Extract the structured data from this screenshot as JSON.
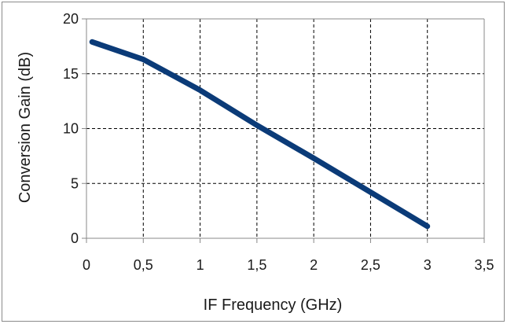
{
  "chart_data": {
    "type": "line",
    "title": "",
    "xlabel": "IF Frequency (GHz)",
    "ylabel": "Conversion Gain (dB)",
    "xlim": [
      0,
      3.5
    ],
    "ylim": [
      0,
      20
    ],
    "grid": true,
    "legend": "none",
    "x_ticks": [
      0,
      0.5,
      1,
      1.5,
      2,
      2.5,
      3,
      3.5
    ],
    "x_tick_labels": [
      "0",
      "0,5",
      "1",
      "1,5",
      "2",
      "2,5",
      "3",
      "3,5"
    ],
    "y_ticks": [
      0,
      5,
      10,
      15,
      20
    ],
    "y_tick_labels": [
      "0",
      "5",
      "10",
      "15",
      "20"
    ],
    "series": [
      {
        "color": "#0b3b78",
        "x": [
          0.05,
          0.5,
          1.0,
          1.5,
          2.0,
          2.5,
          3.0
        ],
        "y": [
          17.9,
          16.3,
          13.5,
          10.3,
          7.3,
          4.2,
          1.1
        ]
      }
    ]
  }
}
